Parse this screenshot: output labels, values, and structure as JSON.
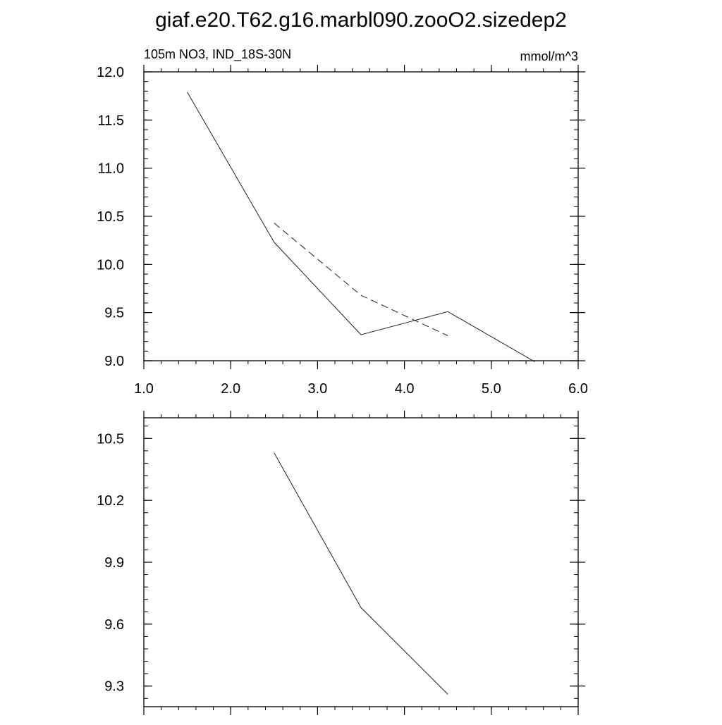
{
  "title": "giaf.e20.T62.g16.marbl090.zooO2.sizedep2",
  "chart_data": [
    {
      "type": "line",
      "subtitle_left": "105m NO3, IND_18S-30N",
      "subtitle_right": "mmol/m^3",
      "xlim": [
        1.0,
        6.0
      ],
      "ylim": [
        9.0,
        12.0
      ],
      "xticks": [
        {
          "value": 1.0,
          "label": "1.0"
        },
        {
          "value": 2.0,
          "label": "2.0"
        },
        {
          "value": 3.0,
          "label": "3.0"
        },
        {
          "value": 4.0,
          "label": "4.0"
        },
        {
          "value": 5.0,
          "label": "5.0"
        },
        {
          "value": 6.0,
          "label": "6.0"
        }
      ],
      "yticks": [
        {
          "value": 9.0,
          "label": "9.0"
        },
        {
          "value": 9.5,
          "label": "9.5"
        },
        {
          "value": 10.0,
          "label": "10.0"
        },
        {
          "value": 10.5,
          "label": "10.5"
        },
        {
          "value": 11.0,
          "label": "11.0"
        },
        {
          "value": 11.5,
          "label": "11.5"
        },
        {
          "value": 12.0,
          "label": "12.0"
        }
      ],
      "series": [
        {
          "style": "solid",
          "x": [
            1.5,
            2.5,
            3.5,
            4.5,
            5.5
          ],
          "y": [
            11.79,
            10.23,
            9.27,
            9.51,
            8.99
          ]
        },
        {
          "style": "dashed",
          "x": [
            2.5,
            3.5,
            4.5
          ],
          "y": [
            10.43,
            9.68,
            9.26
          ]
        }
      ]
    },
    {
      "type": "line",
      "xlim": [
        1.0,
        6.0
      ],
      "ylim": [
        9.2,
        10.6
      ],
      "xticks": [
        {
          "value": 1.0,
          "label": ""
        },
        {
          "value": 2.0,
          "label": ""
        },
        {
          "value": 3.0,
          "label": ""
        },
        {
          "value": 4.0,
          "label": ""
        },
        {
          "value": 5.0,
          "label": ""
        },
        {
          "value": 6.0,
          "label": ""
        }
      ],
      "yticks": [
        {
          "value": 9.3,
          "label": "9.3"
        },
        {
          "value": 9.6,
          "label": "9.6"
        },
        {
          "value": 9.9,
          "label": "9.9"
        },
        {
          "value": 10.2,
          "label": "10.2"
        },
        {
          "value": 10.5,
          "label": "10.5"
        }
      ],
      "series": [
        {
          "style": "solid",
          "x": [
            2.5,
            3.5,
            4.5
          ],
          "y": [
            10.43,
            9.68,
            9.26
          ]
        }
      ]
    }
  ]
}
